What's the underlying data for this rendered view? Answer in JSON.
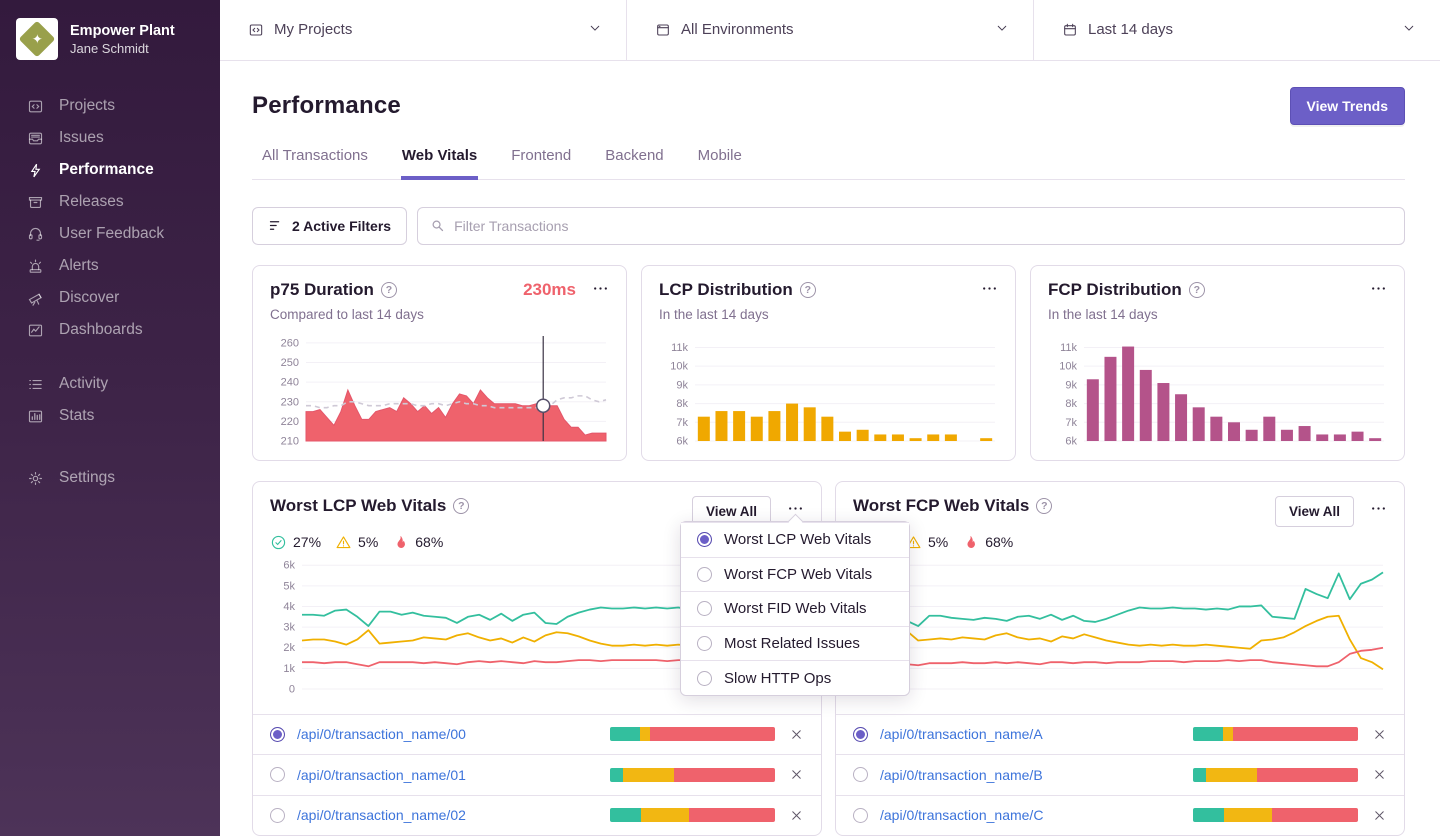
{
  "sidebar": {
    "org_name": "Empower Plant",
    "user_name": "Jane Schmidt",
    "primary": [
      {
        "label": "Projects",
        "icon": "projects-icon",
        "active": false
      },
      {
        "label": "Issues",
        "icon": "issues-icon",
        "active": false
      },
      {
        "label": "Performance",
        "icon": "lightning-icon",
        "active": true
      },
      {
        "label": "Releases",
        "icon": "releases-icon",
        "active": false
      },
      {
        "label": "User Feedback",
        "icon": "feedback-icon",
        "active": false
      },
      {
        "label": "Alerts",
        "icon": "siren-icon",
        "active": false
      },
      {
        "label": "Discover",
        "icon": "telescope-icon",
        "active": false
      },
      {
        "label": "Dashboards",
        "icon": "dashboards-icon",
        "active": false
      }
    ],
    "secondary": [
      {
        "label": "Activity",
        "icon": "activity-icon",
        "active": false
      },
      {
        "label": "Stats",
        "icon": "stats-icon",
        "active": false
      }
    ],
    "tertiary": [
      {
        "label": "Settings",
        "icon": "gear-icon",
        "active": false
      }
    ]
  },
  "topbar": [
    {
      "label": "My Projects",
      "icon": "projects-icon"
    },
    {
      "label": "All Environments",
      "icon": "window-icon"
    },
    {
      "label": "Last 14 days",
      "icon": "calendar-icon"
    }
  ],
  "header": {
    "title": "Performance",
    "view_trends": "View Trends"
  },
  "tabs": [
    {
      "label": "All Transactions",
      "active": false
    },
    {
      "label": "Web Vitals",
      "active": true
    },
    {
      "label": "Frontend",
      "active": false
    },
    {
      "label": "Backend",
      "active": false
    },
    {
      "label": "Mobile",
      "active": false
    }
  ],
  "filter_bar": {
    "active_filters": "2 Active Filters",
    "search_placeholder": "Filter Transactions"
  },
  "cards": {
    "p75": {
      "title": "p75 Duration",
      "value": "230ms",
      "subtitle": "Compared to last 14 days"
    },
    "lcp_dist": {
      "title": "LCP Distribution",
      "subtitle": "In the last 14 days"
    },
    "fcp_dist": {
      "title": "FCP Distribution",
      "subtitle": "In the last 14 days"
    },
    "worst_lcp": {
      "title": "Worst LCP Web Vitals",
      "view_all": "View All",
      "stats": [
        {
          "icon": "check-icon",
          "value": "27%"
        },
        {
          "icon": "warning-icon",
          "value": "5%"
        },
        {
          "icon": "fire-icon",
          "value": "68%"
        }
      ],
      "rows": [
        {
          "label": "/api/0/transaction_name/00",
          "selected": true,
          "bar": [
            18,
            6,
            76
          ]
        },
        {
          "label": "/api/0/transaction_name/01",
          "selected": false,
          "bar": [
            8,
            31,
            61
          ]
        },
        {
          "label": "/api/0/transaction_name/02",
          "selected": false,
          "bar": [
            19,
            29,
            52
          ]
        }
      ]
    },
    "worst_fcp": {
      "title": "Worst FCP Web Vitals",
      "view_all": "View All",
      "stats": [
        {
          "icon": "warning-icon",
          "value": "5%"
        },
        {
          "icon": "fire-icon",
          "value": "68%"
        }
      ],
      "rows": [
        {
          "label": "/api/0/transaction_name/A",
          "selected": true,
          "bar": [
            18,
            6,
            76
          ]
        },
        {
          "label": "/api/0/transaction_name/B",
          "selected": false,
          "bar": [
            8,
            31,
            61
          ]
        },
        {
          "label": "/api/0/transaction_name/C",
          "selected": false,
          "bar": [
            19,
            29,
            52
          ]
        }
      ]
    }
  },
  "dropdown": {
    "items": [
      {
        "label": "Worst LCP Web Vitals",
        "selected": true
      },
      {
        "label": "Worst FCP Web Vitals",
        "selected": false
      },
      {
        "label": "Worst FID Web Vitals",
        "selected": false
      },
      {
        "label": "Most Related Issues",
        "selected": false
      },
      {
        "label": "Slow HTTP Ops",
        "selected": false
      }
    ]
  },
  "colors": {
    "accent_purple": "#6C5FC7",
    "good_green": "#33BF9E",
    "meh_amber": "#F0B000",
    "poor_red": "#EF626C",
    "dist_amber": "#F0A800",
    "dist_magenta": "#B4538A",
    "link_blue": "#3D74DB",
    "prev_dashed": "#CFC9D6"
  },
  "chart_data": [
    {
      "id": "p75",
      "type": "area",
      "title": "p75 Duration ms over last 14 days",
      "ylim": [
        210,
        262
      ],
      "yticks": [
        210,
        220,
        230,
        240,
        250,
        260
      ],
      "ylabels": [
        "210",
        "220",
        "230",
        "240",
        "250",
        "260"
      ],
      "color": "#EF626C",
      "previous_color": "#CFC9D6",
      "cursor_index": 34,
      "values": [
        225,
        225,
        226,
        222,
        218,
        225,
        236,
        228,
        221,
        221,
        225,
        226,
        227,
        225,
        232,
        229,
        225,
        228,
        224,
        227,
        222,
        229,
        234,
        233,
        229,
        236,
        232,
        229,
        229,
        229,
        229,
        228,
        228,
        229,
        228,
        228,
        228,
        221,
        217,
        217,
        213,
        214,
        214,
        214
      ],
      "previous": [
        228,
        228,
        227,
        227,
        228,
        228,
        230,
        230,
        229,
        228,
        228,
        228,
        229,
        229,
        229,
        229,
        228,
        228,
        229,
        229,
        228,
        229,
        230,
        229,
        229,
        228,
        228,
        227,
        227,
        227,
        227,
        227,
        227,
        227,
        228,
        228,
        231,
        232,
        232,
        233,
        233,
        231,
        230,
        231
      ]
    },
    {
      "id": "lcp_dist",
      "type": "bar",
      "title": "LCP Distribution",
      "ylim": [
        6000,
        11400
      ],
      "yticks": [
        6000,
        7000,
        8000,
        9000,
        10000,
        11000
      ],
      "ylabels": [
        "6k",
        "7k",
        "8k",
        "9k",
        "10k",
        "11k"
      ],
      "color": "#F0A800",
      "values": [
        7300,
        7600,
        7600,
        7300,
        7600,
        8000,
        7800,
        7300,
        6500,
        6600,
        6350,
        6350,
        6150,
        6350,
        6350,
        null,
        6150
      ]
    },
    {
      "id": "fcp_dist",
      "type": "bar",
      "title": "FCP Distribution",
      "ylim": [
        6000,
        11400
      ],
      "yticks": [
        6000,
        7000,
        8000,
        9000,
        10000,
        11000
      ],
      "ylabels": [
        "6k",
        "7k",
        "8k",
        "9k",
        "10k",
        "11k"
      ],
      "color": "#B4538A",
      "values": [
        9300,
        10500,
        11050,
        9800,
        9100,
        8500,
        7800,
        7300,
        7000,
        6600,
        7300,
        6600,
        6800,
        6350,
        6350,
        6500,
        6150
      ]
    },
    {
      "id": "worst_lcp",
      "type": "line",
      "title": "Worst LCP Web Vitals",
      "ylim": [
        0,
        6300
      ],
      "yticks": [
        0,
        1000,
        2000,
        3000,
        4000,
        5000,
        6000
      ],
      "ylabels": [
        "0",
        "1k",
        "2k",
        "3k",
        "4k",
        "5k",
        "6k"
      ],
      "series": [
        {
          "name": "good",
          "color": "#33BF9E",
          "values": [
            3600,
            3600,
            3550,
            3800,
            3850,
            3500,
            3050,
            3750,
            3750,
            3600,
            3700,
            3550,
            3500,
            3450,
            3200,
            3500,
            3600,
            3350,
            3650,
            3300,
            3600,
            3700,
            3200,
            3150,
            3500,
            3700,
            3850,
            3950,
            3900,
            3900,
            3950,
            3900,
            3950,
            3900,
            3950,
            3850,
            3900,
            4050,
            4050,
            4050,
            3500,
            3400,
            3400,
            5200,
            4950,
            4650
          ]
        },
        {
          "name": "meh",
          "color": "#F0B000",
          "values": [
            2350,
            2400,
            2400,
            2300,
            2150,
            2400,
            2850,
            2200,
            2250,
            2300,
            2350,
            2500,
            2450,
            2400,
            2600,
            2700,
            2500,
            2350,
            2450,
            2250,
            2500,
            2300,
            2600,
            2750,
            2700,
            2550,
            2350,
            2200,
            2100,
            2100,
            2150,
            2100,
            2150,
            2100,
            2150,
            2100,
            2100,
            2050,
            1950,
            1950,
            2400,
            2450,
            2550,
            2900,
            3200,
            3450
          ]
        },
        {
          "name": "poor",
          "color": "#EF626C",
          "values": [
            1300,
            1300,
            1250,
            1300,
            1300,
            1200,
            1100,
            1300,
            1300,
            1300,
            1300,
            1250,
            1300,
            1250,
            1200,
            1300,
            1350,
            1300,
            1350,
            1300,
            1250,
            1350,
            1300,
            1300,
            1350,
            1400,
            1400,
            1350,
            1400,
            1400,
            1400,
            1400,
            1400,
            1350,
            1400,
            1400,
            1450,
            1450,
            1400,
            1200,
            1150,
            1100,
            1050,
            1000,
            970,
            950
          ]
        }
      ]
    },
    {
      "id": "worst_fcp",
      "type": "line",
      "title": "Worst FCP Web Vitals",
      "ylim": [
        0,
        6300
      ],
      "yticks": [
        0,
        1000,
        2000,
        3000,
        4000,
        5000,
        6000
      ],
      "ylabels": [
        "0",
        "1k",
        "2k",
        "3k",
        "4k",
        "5k",
        "6k"
      ],
      "series": [
        {
          "name": "good",
          "color": "#33BF9E",
          "values": [
            3600,
            3550,
            3300,
            3050,
            3550,
            3550,
            3450,
            3400,
            3350,
            3450,
            3400,
            3300,
            3500,
            3550,
            3400,
            3600,
            3350,
            3550,
            3300,
            3250,
            3400,
            3600,
            3800,
            3950,
            3900,
            3900,
            3950,
            3900,
            3900,
            3850,
            3900,
            3850,
            4000,
            4000,
            4050,
            3500,
            3450,
            3400,
            4850,
            4600,
            4400,
            5600,
            4350,
            5100,
            5300,
            5650
          ]
        },
        {
          "name": "meh",
          "color": "#F0B000",
          "values": [
            2300,
            2450,
            2800,
            2350,
            2400,
            2450,
            2400,
            2500,
            2450,
            2400,
            2600,
            2700,
            2500,
            2400,
            2450,
            2300,
            2550,
            2450,
            2650,
            2500,
            2350,
            2250,
            2150,
            2100,
            2150,
            2100,
            2150,
            2100,
            2100,
            2150,
            2100,
            2050,
            2000,
            1950,
            2350,
            2400,
            2500,
            2750,
            3050,
            3300,
            3500,
            3550,
            2400,
            1500,
            1300,
            950
          ]
        },
        {
          "name": "poor",
          "color": "#EF626C",
          "values": [
            1250,
            1250,
            1200,
            1150,
            1250,
            1250,
            1250,
            1300,
            1250,
            1250,
            1300,
            1250,
            1300,
            1250,
            1200,
            1300,
            1300,
            1250,
            1300,
            1300,
            1250,
            1300,
            1300,
            1300,
            1350,
            1350,
            1350,
            1300,
            1350,
            1350,
            1350,
            1400,
            1350,
            1400,
            1400,
            1300,
            1250,
            1200,
            1150,
            1100,
            1100,
            1300,
            1700,
            1850,
            1900,
            2000
          ]
        }
      ]
    }
  ]
}
